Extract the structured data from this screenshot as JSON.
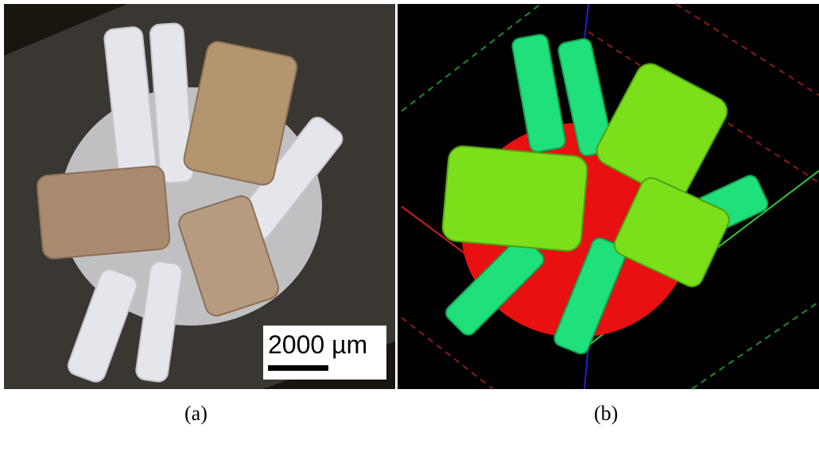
{
  "panels": [
    {
      "scale_bar": "2000 µm",
      "caption": "(a)"
    },
    {
      "caption": "(b)"
    }
  ]
}
